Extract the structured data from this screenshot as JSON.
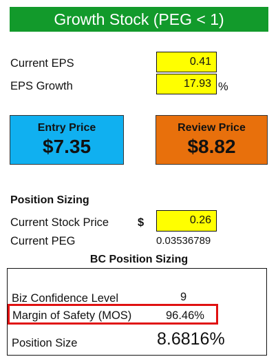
{
  "title": "Growth Stock (PEG < 1)",
  "fields": {
    "current_eps": {
      "label": "Current EPS",
      "value": "0.41"
    },
    "eps_growth": {
      "label": "EPS Growth",
      "value": "17.93",
      "unit": "%"
    }
  },
  "cards": {
    "entry": {
      "label": "Entry Price",
      "value": "$7.35",
      "color": "#10b0f0"
    },
    "review": {
      "label": "Review Price",
      "value": "$8.82",
      "color": "#e8700c"
    }
  },
  "position": {
    "heading": "Position Sizing",
    "stock_price_label": "Current Stock Price",
    "currency": "$",
    "stock_price": "0.26",
    "peg_label": "Current PEG",
    "peg_value": "0.03536789"
  },
  "bc": {
    "heading": "BC Position Sizing",
    "confidence_label": "Biz Confidence Level",
    "confidence_value": "9",
    "mos_label": "Margin of Safety (MOS)",
    "mos_value": "96.46%",
    "size_label": "Position Size",
    "size_value": "8.6816%"
  },
  "colors": {
    "title_bg": "#129a2b",
    "input_bg": "#ffff00",
    "highlight": "#e01010"
  }
}
